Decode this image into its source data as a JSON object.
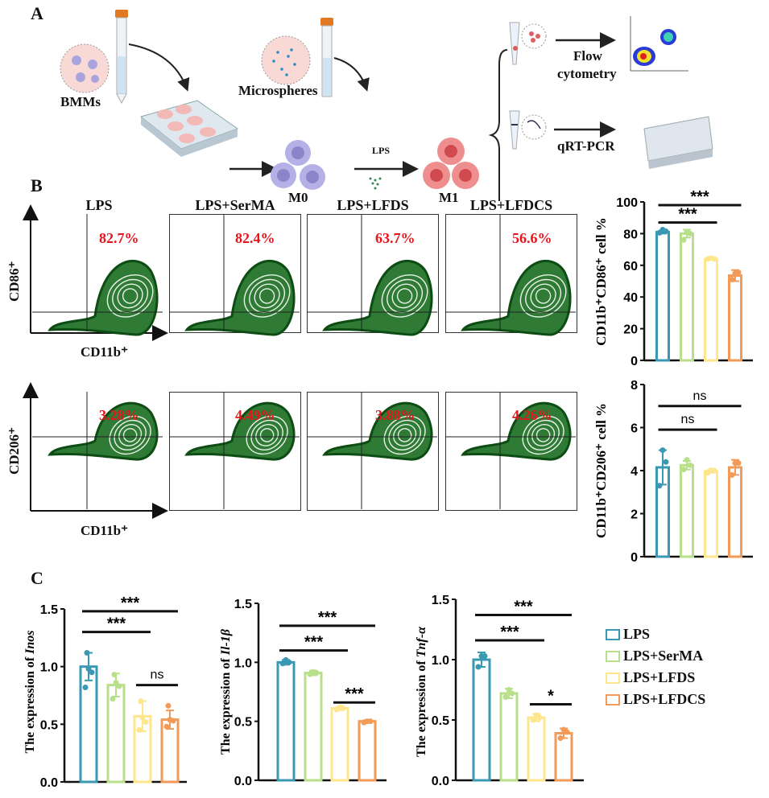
{
  "panel_labels": {
    "a": "A",
    "b": "B",
    "c": "C"
  },
  "schematic": {
    "bmms": "BMMs",
    "microspheres": "Microspheres",
    "lps": "LPS",
    "m0": "M0",
    "m1": "M1",
    "flow_line1": "Flow",
    "flow_line2": "cytometry",
    "qrt": "qRT-PCR"
  },
  "flow": {
    "groups": [
      "LPS",
      "LPS+SerMA",
      "LPS+LFDS",
      "LPS+LFDCS"
    ],
    "row1": {
      "y_label": "CD86⁺",
      "x_label": "CD11b⁺",
      "percents": [
        "82.7%",
        "82.4%",
        "63.7%",
        "56.6%"
      ]
    },
    "row2": {
      "y_label": "CD206⁺",
      "x_label": "CD11b⁺",
      "percents": [
        "3.28%",
        "4.49%",
        "3.88%",
        "4.26%"
      ]
    }
  },
  "legend": [
    "LPS",
    "LPS+SerMA",
    "LPS+LFDS",
    "LPS+LFDCS"
  ],
  "colors": [
    "#3a98b3",
    "#b8df8a",
    "#fde68c",
    "#f29a57"
  ],
  "chart_data": [
    {
      "type": "bar",
      "title": "",
      "xlabel": "",
      "ylabel": "CD11b⁺CD86⁺ cell %",
      "categories": [
        "LPS",
        "LPS+SerMA",
        "LPS+LFDS",
        "LPS+LFDCS"
      ],
      "values": [
        81,
        80,
        64,
        53.5
      ],
      "sd": [
        1,
        2.5,
        0.5,
        3.5
      ],
      "points": [
        [
          80.5,
          81.5,
          82.5
        ],
        [
          76,
          80,
          81
        ],
        [
          64,
          64,
          64.5
        ],
        [
          51,
          55.5,
          55
        ]
      ],
      "ylim": [
        0,
        100
      ],
      "yticks": [
        "0",
        "20",
        "40",
        "60",
        "80",
        "100"
      ],
      "significance": [
        {
          "from": 0,
          "to": 2,
          "label": "***",
          "y": 87
        },
        {
          "from": 0,
          "to": 3,
          "label": "***",
          "y": 98
        }
      ]
    },
    {
      "type": "bar",
      "title": "",
      "xlabel": "",
      "ylabel": "CD11b⁺CD206⁺ cell %",
      "categories": [
        "LPS",
        "LPS+SerMA",
        "LPS+LFDS",
        "LPS+LFDCS"
      ],
      "values": [
        4.15,
        4.25,
        3.97,
        4.15
      ],
      "sd": [
        0.8,
        0.2,
        0.07,
        0.35
      ],
      "points": [
        [
          3.3,
          4.4,
          4.95
        ],
        [
          4.05,
          4.25,
          4.5
        ],
        [
          3.9,
          4.0,
          4.02
        ],
        [
          3.8,
          4.35,
          4.35
        ]
      ],
      "ylim": [
        0,
        8
      ],
      "yticks": [
        "0",
        "2",
        "4",
        "6",
        "8"
      ],
      "significance": [
        {
          "from": 0,
          "to": 2,
          "label": "ns",
          "y": 5.9
        },
        {
          "from": 0,
          "to": 3,
          "label": "ns",
          "y": 7.0
        }
      ]
    },
    {
      "type": "bar",
      "title": "",
      "xlabel": "",
      "ylabel_prefix": "The expression of ",
      "ylabel_gene": "Inos",
      "categories": [
        "LPS",
        "LPS+SerMA",
        "LPS+LFDS",
        "LPS+LFDCS"
      ],
      "values": [
        1.0,
        0.84,
        0.57,
        0.54
      ],
      "sd": [
        0.12,
        0.1,
        0.13,
        0.08
      ],
      "points": [
        [
          0.82,
          0.95,
          0.98,
          1.12
        ],
        [
          0.72,
          0.83,
          0.86,
          0.93
        ],
        [
          0.45,
          0.52,
          0.56,
          0.7
        ],
        [
          0.48,
          0.53,
          0.54,
          0.66
        ]
      ],
      "ylim": [
        0,
        1.5
      ],
      "yticks": [
        "0.0",
        "0.5",
        "1.0",
        "1.5"
      ],
      "significance": [
        {
          "from": 0,
          "to": 2,
          "label": "***",
          "y": 1.3
        },
        {
          "from": 0,
          "to": 3,
          "label": "***",
          "y": 1.48
        },
        {
          "from": 2,
          "to": 3,
          "label": "ns",
          "y": 0.84
        }
      ]
    },
    {
      "type": "bar",
      "title": "",
      "xlabel": "",
      "ylabel_prefix": "The expression of ",
      "ylabel_gene": "Il-1β",
      "categories": [
        "LPS",
        "LPS+SerMA",
        "LPS+LFDS",
        "LPS+LFDCS"
      ],
      "values": [
        1.0,
        0.91,
        0.61,
        0.5
      ],
      "sd": [
        0.02,
        0.02,
        0.015,
        0.01
      ],
      "points": [
        [
          0.99,
          1.0,
          1.02
        ],
        [
          0.9,
          0.91,
          0.92
        ],
        [
          0.6,
          0.61,
          0.62
        ],
        [
          0.49,
          0.5,
          0.5
        ]
      ],
      "ylim": [
        0,
        1.5
      ],
      "yticks": [
        "0.0",
        "0.5",
        "1.0",
        "1.5"
      ],
      "significance": [
        {
          "from": 0,
          "to": 2,
          "label": "***",
          "y": 1.1
        },
        {
          "from": 0,
          "to": 3,
          "label": "***",
          "y": 1.31
        },
        {
          "from": 2,
          "to": 3,
          "label": "***",
          "y": 0.66
        }
      ]
    },
    {
      "type": "bar",
      "title": "",
      "xlabel": "",
      "ylabel_prefix": "The expression of ",
      "ylabel_gene": "Tnf-α",
      "categories": [
        "LPS",
        "LPS+SerMA",
        "LPS+LFDS",
        "LPS+LFDCS"
      ],
      "values": [
        1.0,
        0.72,
        0.52,
        0.39
      ],
      "sd": [
        0.06,
        0.04,
        0.03,
        0.04
      ],
      "points": [
        [
          0.94,
          1.03,
          1.03
        ],
        [
          0.69,
          0.72,
          0.75
        ],
        [
          0.5,
          0.52,
          0.54
        ],
        [
          0.35,
          0.4,
          0.42
        ]
      ],
      "ylim": [
        0,
        1.5
      ],
      "yticks": [
        "0.0",
        "0.5",
        "1.0",
        "1.5"
      ],
      "significance": [
        {
          "from": 0,
          "to": 2,
          "label": "***",
          "y": 1.16
        },
        {
          "from": 0,
          "to": 3,
          "label": "***",
          "y": 1.37
        },
        {
          "from": 2,
          "to": 3,
          "label": "*",
          "y": 0.63
        }
      ]
    }
  ]
}
